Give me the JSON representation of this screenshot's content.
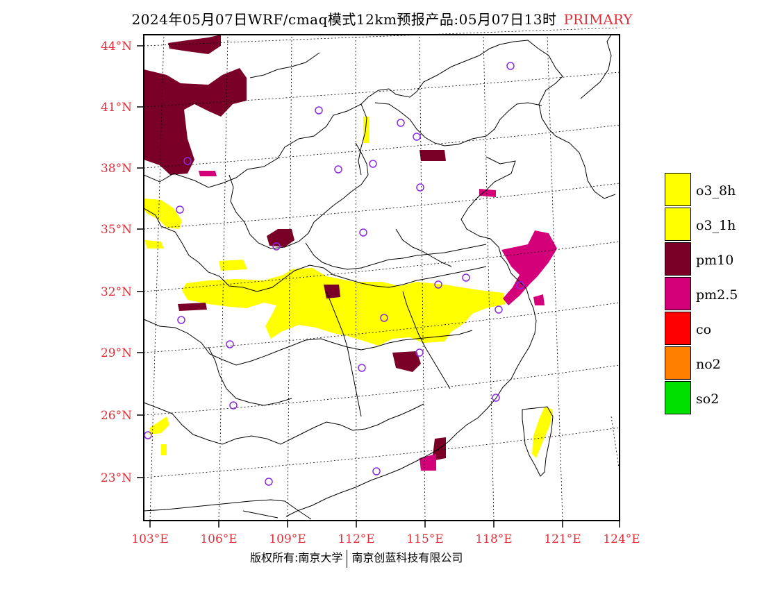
{
  "title": {
    "main": "2024年05月07日WRF/cmaq模式12km预报产品:05月07日13时",
    "tag": "PRIMARY"
  },
  "map": {
    "lat_labels": [
      "44°N",
      "41°N",
      "38°N",
      "35°N",
      "32°N",
      "29°N",
      "26°N",
      "23°N"
    ],
    "lon_labels": [
      "103°E",
      "106°E",
      "109°E",
      "112°E",
      "115°E",
      "118°E",
      "121°E",
      "124°E"
    ],
    "colors": {
      "o3_8h": "#ffff00",
      "o3_1h": "#ffff00",
      "pm10": "#7a0028",
      "pm25": "#d4007a",
      "co": "#ff0000",
      "no2": "#ff8000",
      "so2": "#00e000",
      "station": "#8a2be2",
      "tick": "#e0303a"
    }
  },
  "legend": [
    {
      "label": "o3_8h",
      "color": "#ffff00"
    },
    {
      "label": "o3_1h",
      "color": "#ffff00"
    },
    {
      "label": "pm10",
      "color": "#7a0028"
    },
    {
      "label": "pm2.5",
      "color": "#d4007a"
    },
    {
      "label": "co",
      "color": "#ff0000"
    },
    {
      "label": "no2",
      "color": "#ff8000"
    },
    {
      "label": "so2",
      "color": "#00e000"
    }
  ],
  "footer": {
    "left": "版权所有:南京大学",
    "right": "南京创蓝科技有限公司"
  }
}
